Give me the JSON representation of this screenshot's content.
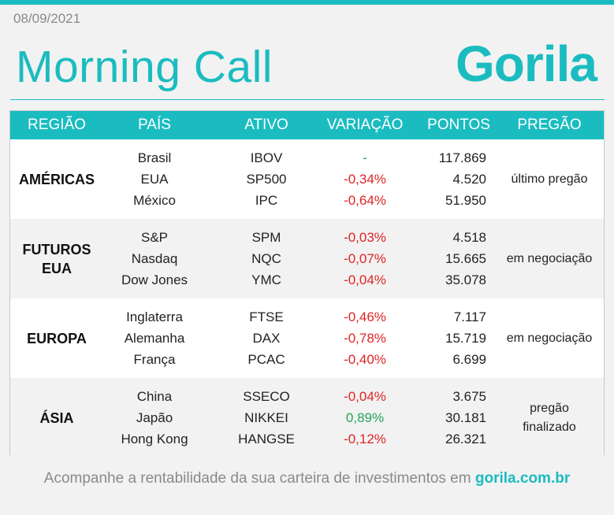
{
  "header": {
    "date": "08/09/2021",
    "title": "Morning Call",
    "logo_text": "Gorila"
  },
  "table": {
    "columns": [
      "REGIÃO",
      "PAÍS",
      "ATIVO",
      "VARIAÇÃO",
      "PONTOS",
      "PREGÃO"
    ],
    "groups": [
      {
        "region": "AMÉRICAS",
        "status": "último pregão",
        "rows": [
          {
            "pais": "Brasil",
            "ativo": "IBOV",
            "variacao": "-",
            "pontos": "117.869"
          },
          {
            "pais": "EUA",
            "ativo": "SP500",
            "variacao": "-0,34%",
            "pontos": "4.520"
          },
          {
            "pais": "México",
            "ativo": "IPC",
            "variacao": "-0,64%",
            "pontos": "51.950"
          }
        ]
      },
      {
        "region": "FUTUROS EUA",
        "status": "em negociação",
        "rows": [
          {
            "pais": "S&P",
            "ativo": "SPM",
            "variacao": "-0,03%",
            "pontos": "4.518"
          },
          {
            "pais": "Nasdaq",
            "ativo": "NQC",
            "variacao": "-0,07%",
            "pontos": "15.665"
          },
          {
            "pais": "Dow Jones",
            "ativo": "YMC",
            "variacao": "-0,04%",
            "pontos": "35.078"
          }
        ]
      },
      {
        "region": "EUROPA",
        "status": "em negociação",
        "rows": [
          {
            "pais": "Inglaterra",
            "ativo": "FTSE",
            "variacao": "-0,46%",
            "pontos": "7.117"
          },
          {
            "pais": "Alemanha",
            "ativo": "DAX",
            "variacao": "-0,78%",
            "pontos": "15.719"
          },
          {
            "pais": "França",
            "ativo": "PCAC",
            "variacao": "-0,40%",
            "pontos": "6.699"
          }
        ]
      },
      {
        "region": "ÁSIA",
        "status": "pregão finalizado",
        "rows": [
          {
            "pais": "China",
            "ativo": "SSECO",
            "variacao": "-0,04%",
            "pontos": "3.675"
          },
          {
            "pais": "Japão",
            "ativo": "NIKKEI",
            "variacao": "0,89%",
            "pontos": "30.181"
          },
          {
            "pais": "Hong Kong",
            "ativo": "HANGSE",
            "variacao": "-0,12%",
            "pontos": "26.321"
          }
        ]
      }
    ]
  },
  "footer": {
    "text": "Acompanhe a rentabilidade da sua carteira de investimentos em ",
    "link": "gorila.com.br"
  },
  "colors": {
    "accent": "#1bbcc0",
    "negative": "#e02424",
    "positive": "#24a65b"
  }
}
